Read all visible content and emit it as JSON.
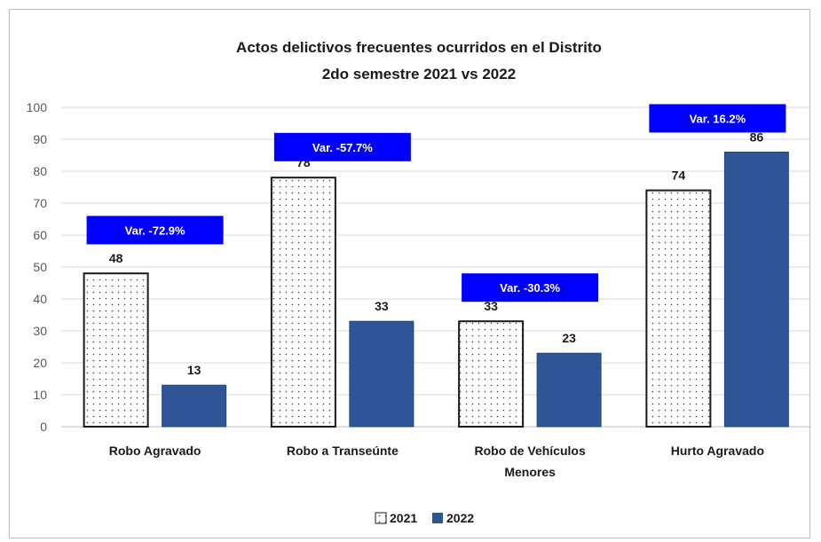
{
  "chart_data": {
    "type": "bar",
    "title": "Actos delictivos frecuentes ocurridos en el Distrito",
    "subtitle": "2do semestre 2021 vs 2022",
    "categories": [
      [
        "Robo Agravado"
      ],
      [
        "Robo a Transeúnte"
      ],
      [
        "Robo de Vehículos",
        "Menores"
      ],
      [
        "Hurto Agravado"
      ]
    ],
    "series": [
      {
        "name": "2021",
        "values": [
          48,
          78,
          33,
          74
        ],
        "style": "dotted-white",
        "color": "#ffffff"
      },
      {
        "name": "2022",
        "values": [
          13,
          33,
          23,
          86
        ],
        "style": "solid",
        "color": "#2f5597"
      }
    ],
    "annotations": [
      {
        "category_index": 0,
        "text": "Var. -72.9%",
        "value_level": 66
      },
      {
        "category_index": 1,
        "text": "Var. -57.7%",
        "value_level": 92
      },
      {
        "category_index": 2,
        "text": "Var. -30.3%",
        "value_level": 48
      },
      {
        "category_index": 3,
        "text": "Var. 16.2%",
        "value_level": 101
      }
    ],
    "annotation_color": "#0000ff",
    "ylim": [
      0,
      100
    ],
    "yticks": [
      0,
      10,
      20,
      30,
      40,
      50,
      60,
      70,
      80,
      90,
      100
    ],
    "xlabel": "",
    "ylabel": "",
    "grid": true,
    "legend_position": "bottom"
  }
}
